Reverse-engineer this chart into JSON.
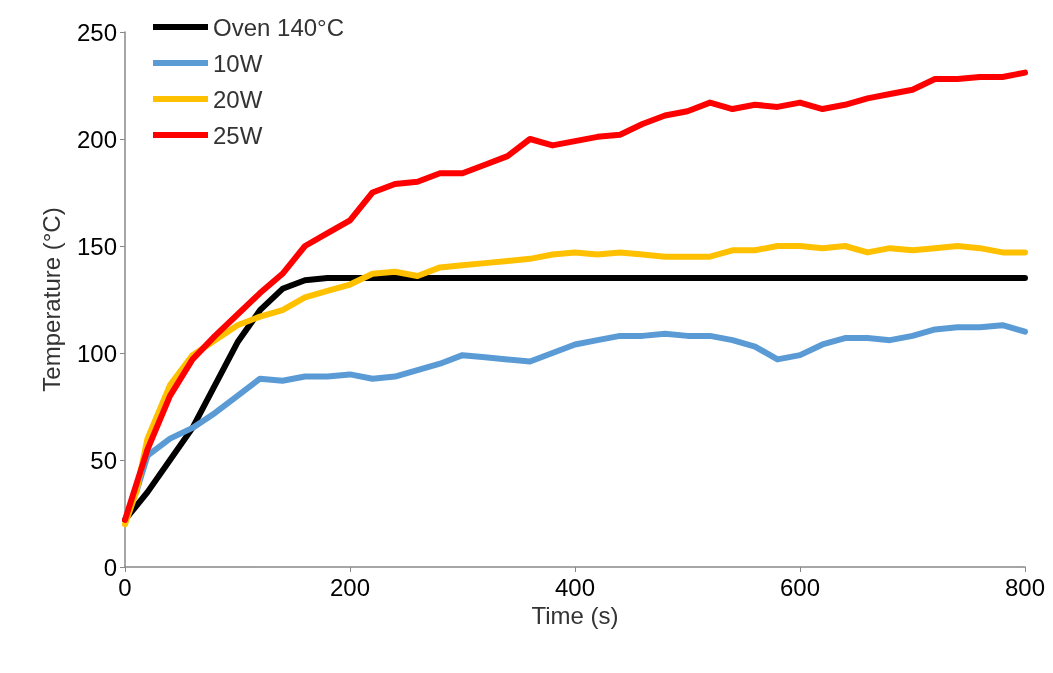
{
  "chart_data": {
    "type": "line",
    "xlabel": "Time (s)",
    "ylabel": "Temperature (°C)",
    "xlim": [
      0,
      800
    ],
    "xticks": [
      0,
      200,
      400,
      600,
      800
    ],
    "ylim": [
      0,
      250
    ],
    "yticks": [
      0,
      50,
      100,
      150,
      200,
      250
    ],
    "grid": false,
    "legend": "top left",
    "marker": "none",
    "line_style": "solid",
    "series": [
      {
        "name": "Oven 140°C",
        "color": "#000000",
        "x": [
          0,
          20,
          40,
          60,
          80,
          100,
          120,
          140,
          160,
          180,
          200,
          250,
          300,
          400,
          500,
          600,
          700,
          800
        ],
        "values": [
          22,
          35,
          50,
          65,
          85,
          105,
          120,
          130,
          134,
          135,
          135,
          135,
          135,
          135,
          135,
          135,
          135,
          135
        ]
      },
      {
        "name": "10W",
        "color": "#5b9bd5",
        "x": [
          10,
          20,
          40,
          60,
          80,
          100,
          120,
          140,
          160,
          180,
          200,
          220,
          240,
          260,
          280,
          300,
          320,
          340,
          360,
          380,
          400,
          420,
          440,
          460,
          480,
          500,
          520,
          540,
          560,
          580,
          600,
          620,
          640,
          660,
          680,
          700,
          720,
          740,
          760,
          780,
          800
        ],
        "values": [
          35,
          52,
          60,
          65,
          72,
          80,
          88,
          87,
          89,
          89,
          90,
          88,
          89,
          92,
          95,
          99,
          98,
          97,
          96,
          100,
          104,
          106,
          108,
          108,
          109,
          108,
          108,
          106,
          103,
          97,
          99,
          104,
          107,
          107,
          106,
          108,
          111,
          112,
          112,
          113,
          110
        ]
      },
      {
        "name": "20W",
        "color": "#ffc000",
        "x": [
          0,
          10,
          20,
          40,
          60,
          80,
          100,
          120,
          140,
          160,
          180,
          200,
          220,
          240,
          260,
          280,
          300,
          320,
          340,
          360,
          380,
          400,
          420,
          440,
          460,
          480,
          500,
          520,
          540,
          560,
          580,
          600,
          620,
          640,
          660,
          680,
          700,
          720,
          740,
          760,
          780,
          800
        ],
        "values": [
          20,
          35,
          60,
          85,
          99,
          106,
          113,
          117,
          120,
          126,
          129,
          132,
          137,
          138,
          136,
          140,
          141,
          142,
          143,
          144,
          146,
          147,
          146,
          147,
          146,
          145,
          145,
          145,
          148,
          148,
          150,
          150,
          149,
          150,
          147,
          149,
          148,
          149,
          150,
          149,
          147,
          147
        ]
      },
      {
        "name": "25W",
        "color": "#ff0000",
        "x": [
          0,
          20,
          40,
          60,
          80,
          100,
          120,
          140,
          160,
          180,
          200,
          220,
          240,
          260,
          280,
          300,
          320,
          340,
          360,
          380,
          400,
          420,
          440,
          460,
          480,
          500,
          520,
          540,
          560,
          580,
          600,
          620,
          640,
          660,
          680,
          700,
          720,
          740,
          760,
          780,
          800
        ],
        "values": [
          22,
          55,
          80,
          97,
          108,
          118,
          128,
          137,
          150,
          156,
          162,
          175,
          179,
          180,
          184,
          184,
          188,
          192,
          200,
          197,
          199,
          201,
          202,
          207,
          211,
          213,
          217,
          214,
          216,
          215,
          217,
          214,
          216,
          219,
          221,
          223,
          228,
          228,
          229,
          229,
          231
        ]
      }
    ]
  }
}
